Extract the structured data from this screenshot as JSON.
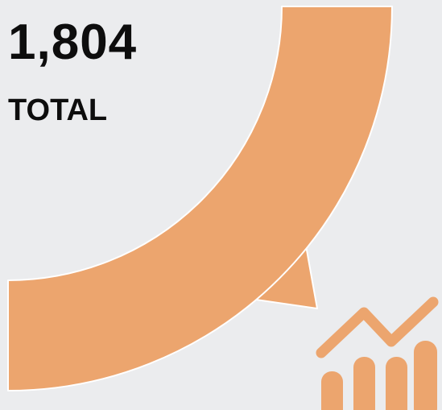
{
  "stat": {
    "value": "1,804",
    "label": "TOTAL"
  },
  "colors": {
    "accent": "#eca56e",
    "background": "#ebecee",
    "text": "#0d0d0d",
    "outline": "#ffffff"
  },
  "icons": {
    "chart": "trend-bar-chart-icon"
  }
}
